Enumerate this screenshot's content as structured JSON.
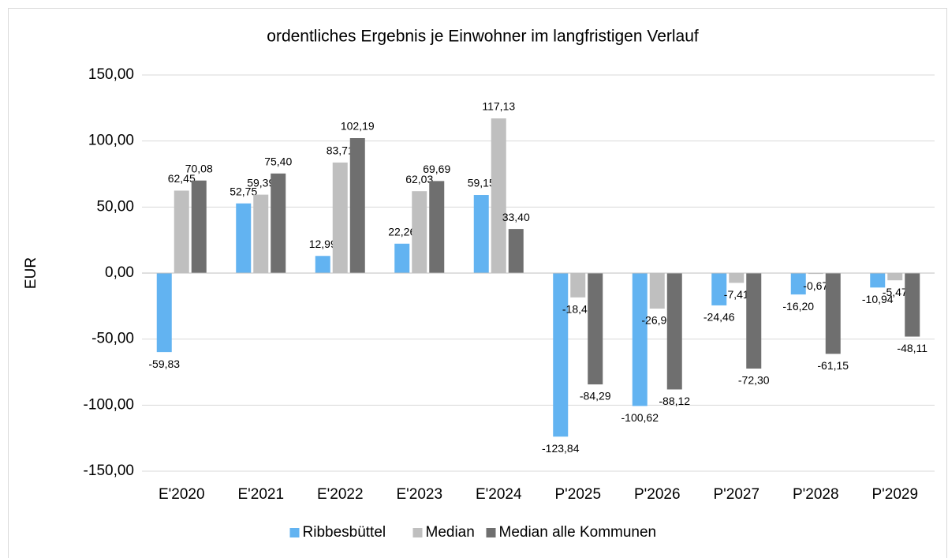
{
  "chart_data": {
    "type": "bar",
    "title": "ordentliches Ergebnis je Einwohner im langfristigen Verlauf",
    "y_label": "EUR",
    "categories": [
      "E'2020",
      "E'2021",
      "E'2022",
      "E'2023",
      "E'2024",
      "P'2025",
      "P'2026",
      "P'2027",
      "P'2028",
      "P'2029"
    ],
    "series": [
      {
        "name": "Ribbesbüttel",
        "color": "#62b3f1",
        "values": [
          -59.83,
          52.75,
          12.99,
          22.26,
          59.15,
          -123.84,
          -100.62,
          -24.46,
          -16.2,
          -10.94
        ],
        "value_labels": [
          "-59,83",
          "52,75",
          "12,99",
          "22,26",
          "59,15",
          "-123,84",
          "-100,62",
          "-24,46",
          "-16,20",
          "-10,94"
        ]
      },
      {
        "name": "Median",
        "color": "#bfbfbf",
        "values": [
          62.45,
          59.39,
          83.71,
          62.03,
          117.13,
          -18.41,
          -26.9,
          -7.41,
          -0.67,
          -5.47
        ],
        "value_labels": [
          "62,45",
          "59,39",
          "83,71",
          "62,03",
          "117,13",
          "-18,41",
          "-26,90",
          "-7,41",
          "-0,67",
          "-5,47"
        ]
      },
      {
        "name": "Median alle Kommunen",
        "color": "#6f6f6f",
        "values": [
          70.08,
          75.4,
          102.19,
          69.69,
          33.4,
          -84.29,
          -88.12,
          -72.3,
          -61.15,
          -48.11
        ],
        "value_labels": [
          "70,08",
          "75,40",
          "102,19",
          "69,69",
          "33,40",
          "-84,29",
          "-88,12",
          "-72,30",
          "-61,15",
          "-48,11"
        ]
      }
    ],
    "ylim": [
      -150,
      150
    ],
    "yticks": [
      {
        "value": -150,
        "label": "-150,00"
      },
      {
        "value": -100,
        "label": "-100,00"
      },
      {
        "value": -50,
        "label": "-50,00"
      },
      {
        "value": 0,
        "label": "0,00"
      },
      {
        "value": 50,
        "label": "50,00"
      },
      {
        "value": 100,
        "label": "100,00"
      },
      {
        "value": 150,
        "label": "150,00"
      }
    ],
    "grid": true,
    "legend": "bottom"
  }
}
